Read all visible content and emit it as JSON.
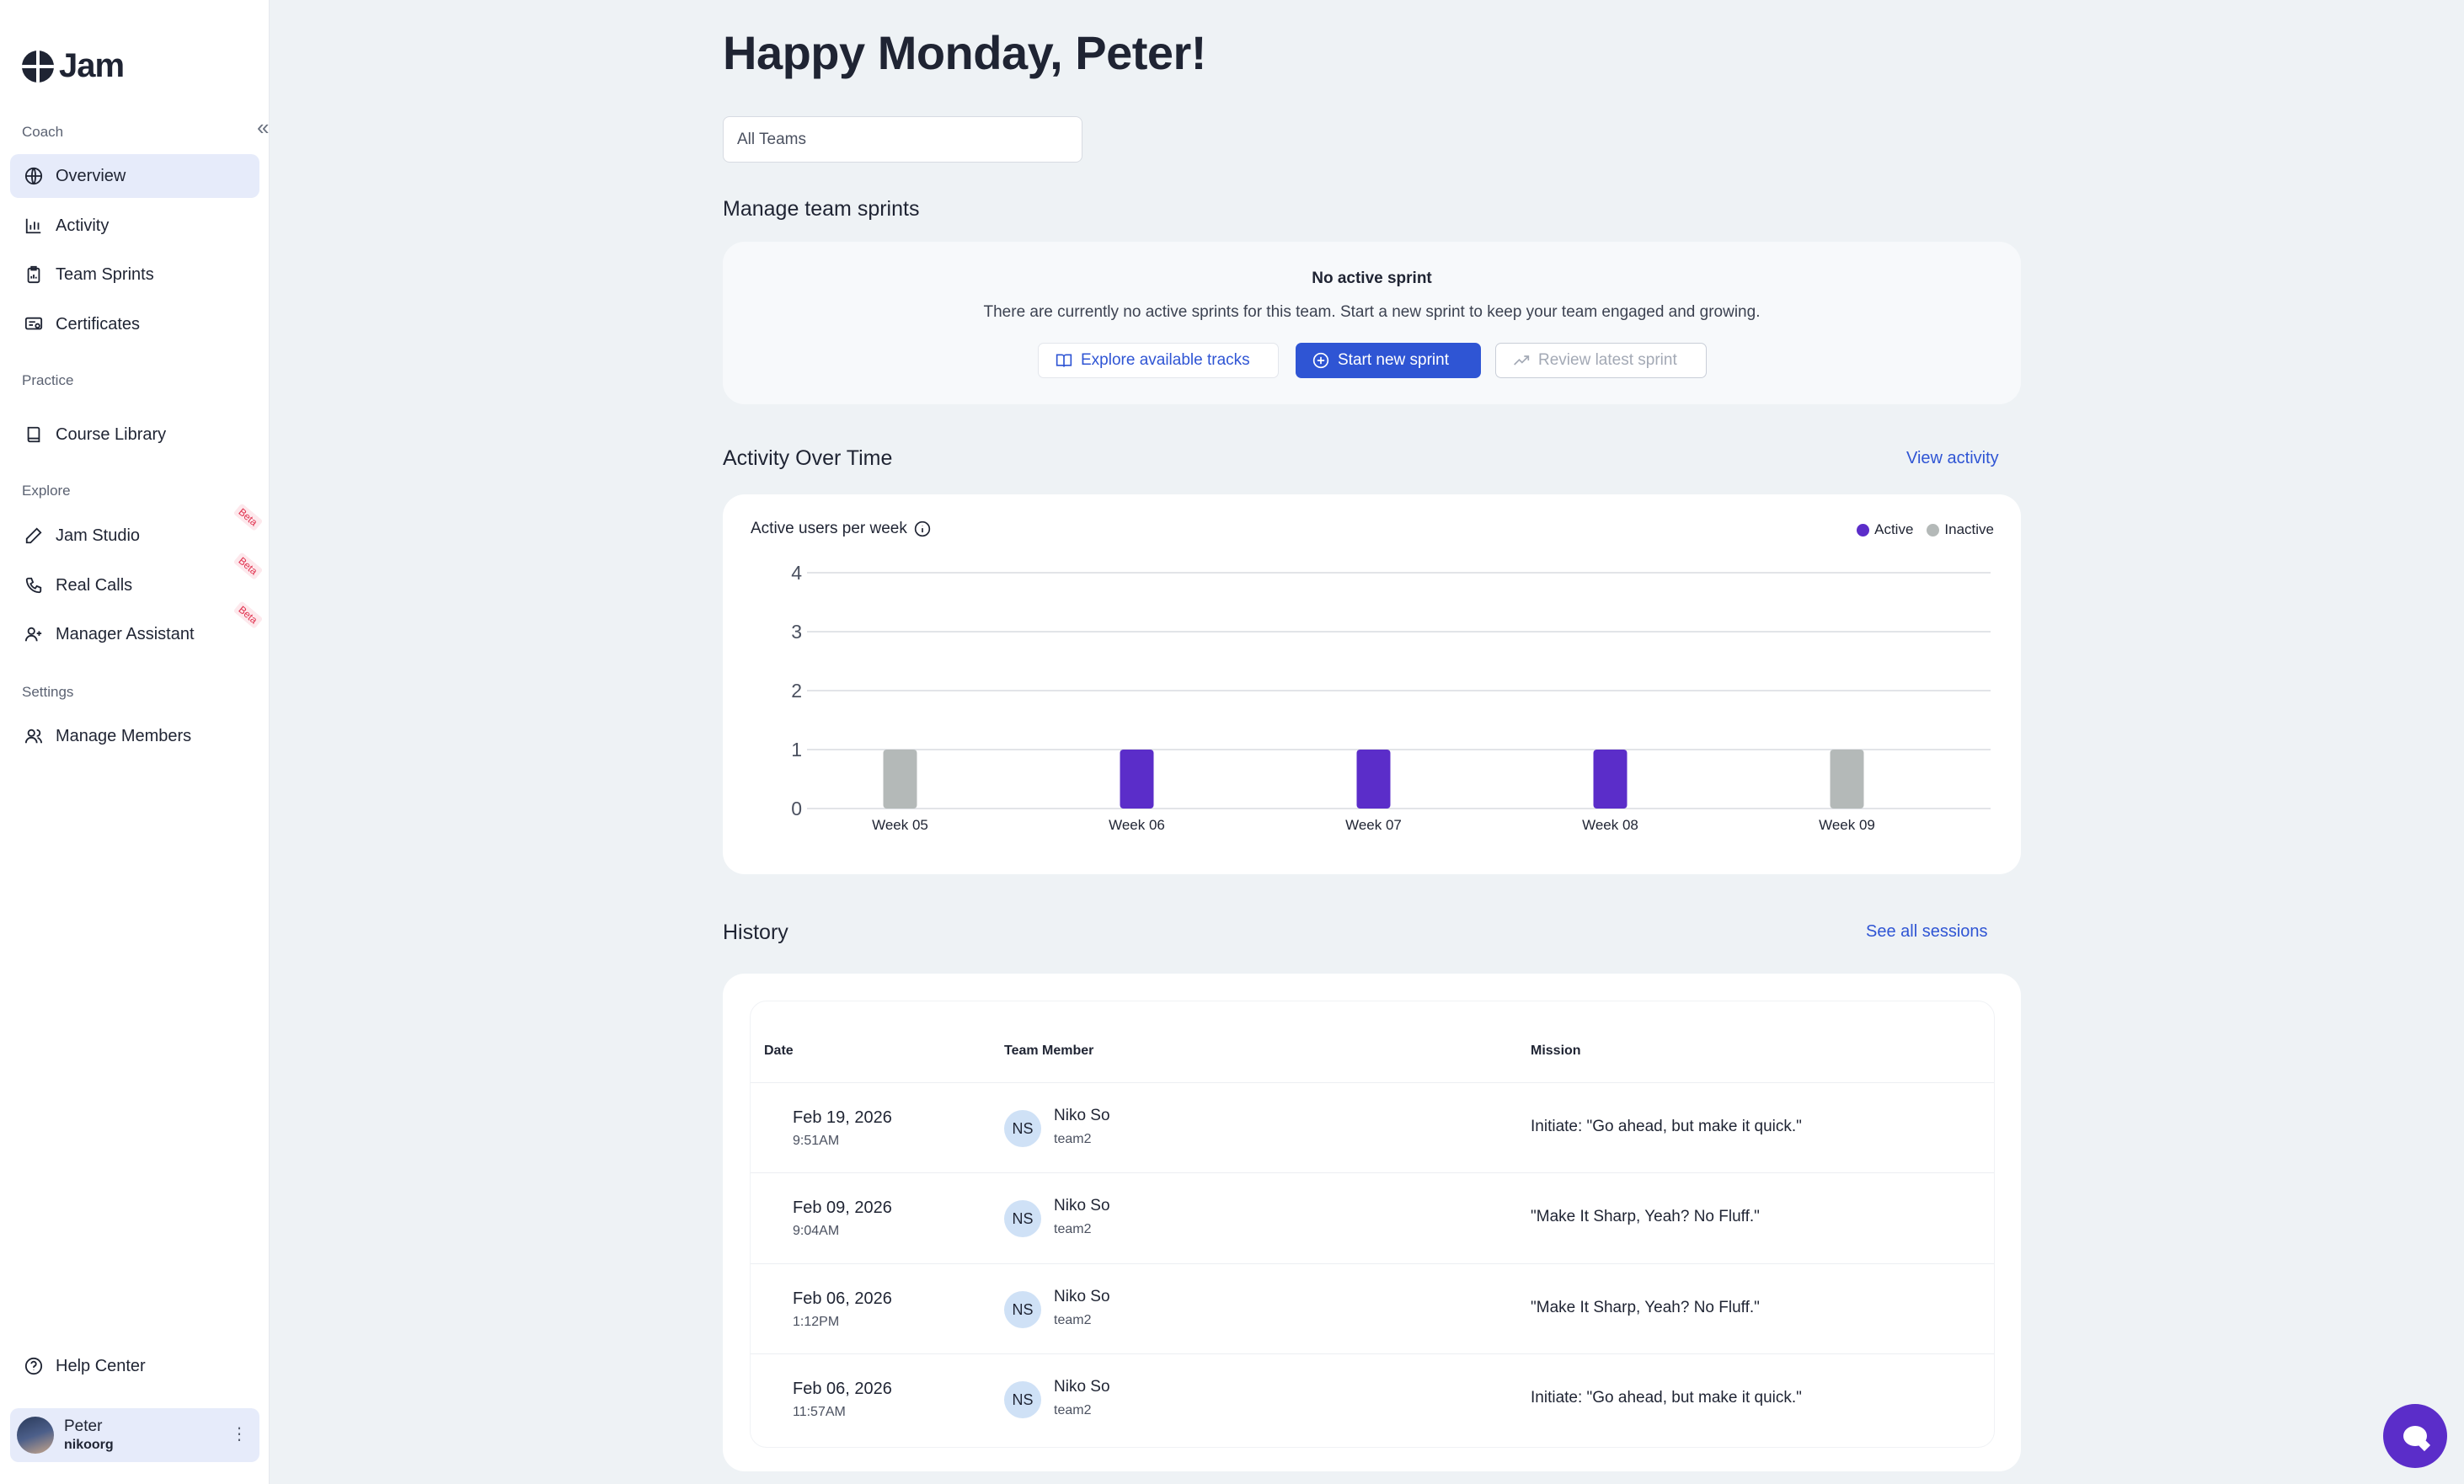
{
  "app": {
    "logo_text": "Jam"
  },
  "sidebar": {
    "sections": [
      {
        "label": "Coach"
      },
      {
        "label": "Practice"
      },
      {
        "label": "Explore"
      },
      {
        "label": "Settings"
      }
    ],
    "items": [
      {
        "label": "Overview",
        "icon": "globe-icon",
        "active": true
      },
      {
        "label": "Activity",
        "icon": "bar-chart-icon"
      },
      {
        "label": "Team Sprints",
        "icon": "clipboard-icon"
      },
      {
        "label": "Certificates",
        "icon": "certificate-icon"
      },
      {
        "label": "Course Library",
        "icon": "book-icon"
      },
      {
        "label": "Jam Studio",
        "icon": "pencil-icon",
        "badge": "Beta"
      },
      {
        "label": "Real Calls",
        "icon": "phone-icon",
        "badge": "Beta"
      },
      {
        "label": "Manager Assistant",
        "icon": "user-plus-icon",
        "badge": "Beta"
      },
      {
        "label": "Manage Members",
        "icon": "users-icon"
      }
    ],
    "help": "Help Center",
    "user": {
      "name": "Peter",
      "org": "nikoorg"
    }
  },
  "main": {
    "greeting": "Happy Monday, Peter!",
    "team_filter": "All Teams",
    "sprints": {
      "title": "Manage team sprints",
      "empty_title": "No active sprint",
      "empty_desc": "There are currently no active sprints for this team. Start a new sprint to keep your team engaged and growing.",
      "explore_label": "Explore available tracks",
      "start_label": "Start new sprint",
      "review_label": "Review latest sprint"
    },
    "activity": {
      "title": "Activity Over Time",
      "view_link": "View activity",
      "chart_title": "Active users per week"
    },
    "history": {
      "title": "History",
      "see_all": "See all sessions",
      "columns": [
        "Date",
        "Team Member",
        "Mission"
      ],
      "rows": [
        {
          "date": "Feb 19, 2026",
          "time": "9:51AM",
          "initials": "NS",
          "name": "Niko So",
          "team": "team2",
          "mission": "Initiate: \"Go ahead, but make it quick.\""
        },
        {
          "date": "Feb 09, 2026",
          "time": "9:04AM",
          "initials": "NS",
          "name": "Niko So",
          "team": "team2",
          "mission": "\"Make It Sharp, Yeah? No Fluff.\""
        },
        {
          "date": "Feb 06, 2026",
          "time": "1:12PM",
          "initials": "NS",
          "name": "Niko So",
          "team": "team2",
          "mission": "\"Make It Sharp, Yeah? No Fluff.\""
        },
        {
          "date": "Feb 06, 2026",
          "time": "11:57AM",
          "initials": "NS",
          "name": "Niko So",
          "team": "team2",
          "mission": "Initiate: \"Go ahead, but make it quick.\""
        }
      ]
    }
  },
  "colors": {
    "accent": "#2f55d4",
    "active": "#5b2dc9",
    "inactive": "#b4b9b8"
  },
  "chart_data": {
    "type": "bar",
    "title": "Active users per week",
    "categories": [
      "Week 05",
      "Week 06",
      "Week 07",
      "Week 08",
      "Week 09"
    ],
    "series": [
      {
        "name": "Active",
        "values": [
          0,
          1,
          1,
          1,
          0
        ]
      },
      {
        "name": "Inactive",
        "values": [
          1,
          0,
          0,
          0,
          1
        ]
      }
    ],
    "yticks": [
      "0",
      "1",
      "2",
      "3",
      "4"
    ],
    "ylim": [
      0,
      4
    ],
    "grid": true,
    "legend": "top-right"
  }
}
